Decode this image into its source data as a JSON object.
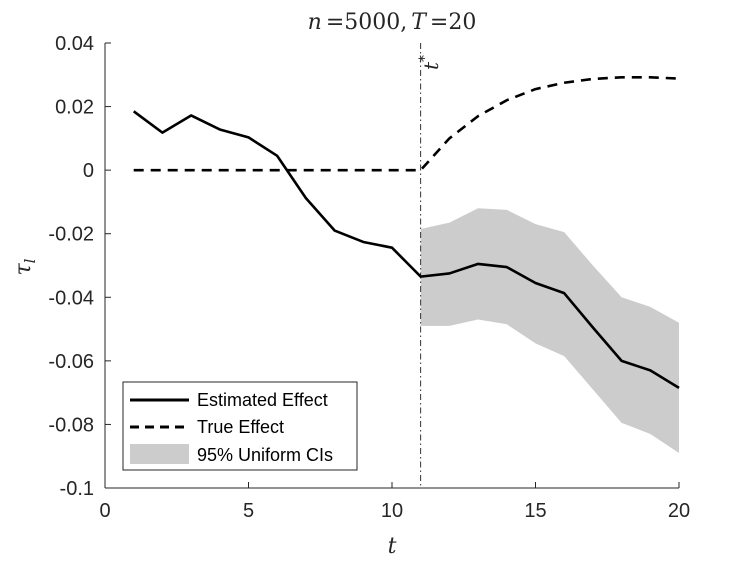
{
  "chart_data": {
    "type": "line",
    "title": "n =5000, T =20",
    "title_parts": {
      "n_sym": "n",
      "n_val": "=5000,",
      "T_sym": "T",
      "T_val": "=20"
    },
    "xlabel": "t",
    "ylabel": "τ",
    "ylabel_sub": "l",
    "xlim": [
      0,
      20
    ],
    "ylim": [
      -0.1,
      0.04
    ],
    "xticks": [
      0,
      5,
      10,
      15,
      20
    ],
    "xtick_labels": [
      "0",
      "5",
      "10",
      "15",
      "20"
    ],
    "yticks": [
      -0.1,
      -0.08,
      -0.06,
      -0.04,
      -0.02,
      0,
      0.02,
      0.04
    ],
    "ytick_labels": [
      "-0.1",
      "-0.08",
      "-0.06",
      "-0.04",
      "-0.02",
      "0",
      "0.02",
      "0.04"
    ],
    "vline": {
      "x": 11,
      "label": "t",
      "label_sup": "*"
    },
    "series": [
      {
        "name": "Estimated Effect",
        "style": "solid",
        "x": [
          1,
          2,
          3,
          4,
          5,
          6,
          7,
          8,
          9,
          10,
          11,
          12,
          13,
          14,
          15,
          16,
          17,
          18,
          19,
          20
        ],
        "values": [
          0.0185,
          0.0118,
          0.0172,
          0.0128,
          0.0103,
          0.0045,
          -0.0088,
          -0.019,
          -0.0226,
          -0.0244,
          -0.0335,
          -0.0325,
          -0.0295,
          -0.0305,
          -0.0355,
          -0.0387,
          -0.0495,
          -0.06,
          -0.063,
          -0.0685
        ]
      },
      {
        "name": "True Effect",
        "style": "dashed",
        "x": [
          1,
          2,
          3,
          4,
          5,
          6,
          7,
          8,
          9,
          10,
          11,
          12,
          13,
          14,
          15,
          16,
          17,
          18,
          19,
          20
        ],
        "values": [
          0,
          0,
          0,
          0,
          0,
          0,
          0,
          0,
          0,
          0,
          0,
          0.01,
          0.017,
          0.022,
          0.0255,
          0.0275,
          0.0287,
          0.0292,
          0.0292,
          0.0288
        ]
      }
    ],
    "band": {
      "name": "95% Uniform CIs",
      "x": [
        11,
        12,
        13,
        14,
        15,
        16,
        17,
        18,
        19,
        20
      ],
      "lower": [
        -0.049,
        -0.049,
        -0.047,
        -0.0485,
        -0.0545,
        -0.0585,
        -0.069,
        -0.0795,
        -0.083,
        -0.089
      ],
      "upper": [
        -0.0185,
        -0.0165,
        -0.012,
        -0.0125,
        -0.017,
        -0.0195,
        -0.03,
        -0.04,
        -0.043,
        -0.048
      ]
    },
    "legend": {
      "location": "bottom-left",
      "entries": [
        "Estimated Effect",
        "True Effect",
        "95% Uniform CIs"
      ]
    },
    "colors": {
      "line": "#000000",
      "band": "#cccccc",
      "axis": "#262626",
      "vline": "#000000"
    }
  }
}
